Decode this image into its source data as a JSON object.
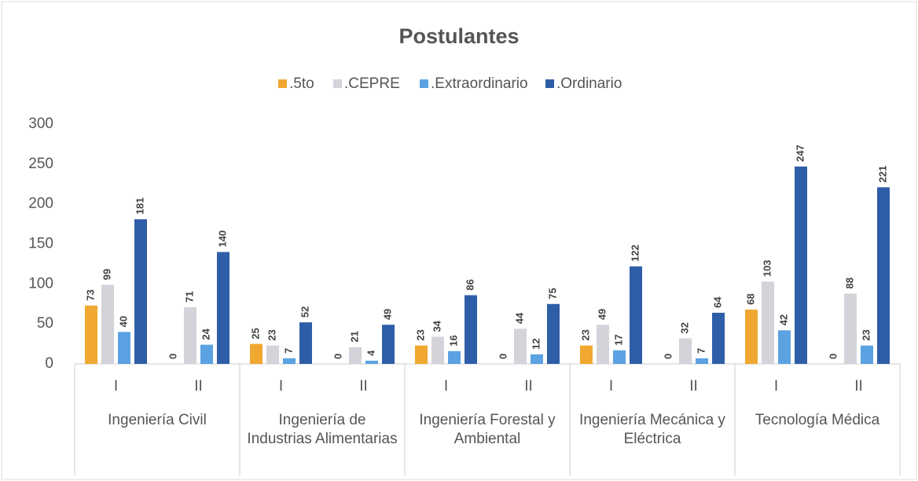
{
  "chart_data": {
    "type": "bar",
    "title": "Postulantes",
    "categories": [
      "I",
      "II",
      "I",
      "II",
      "I",
      "II",
      "I",
      "II",
      "I",
      "II"
    ],
    "groups": [
      "Ingeniería Civil",
      "Ingeniería de Industrias Alimentarias",
      "Ingeniería Forestal y Ambiental",
      "Ingeniería Mecánica y Eléctrica",
      "Tecnología Médica"
    ],
    "series": [
      {
        "name": ".5to",
        "color": "#f0a830",
        "values": [
          73,
          0,
          25,
          0,
          23,
          0,
          23,
          0,
          68,
          0
        ]
      },
      {
        "name": ".CEPRE",
        "color": "#d3d3da",
        "values": [
          99,
          71,
          23,
          21,
          34,
          44,
          49,
          32,
          103,
          88
        ]
      },
      {
        "name": ".Extraordinario",
        "color": "#5ba2e3",
        "values": [
          40,
          24,
          7,
          4,
          16,
          12,
          17,
          7,
          42,
          23
        ]
      },
      {
        "name": ".Ordinario",
        "color": "#2f5ea8",
        "values": [
          181,
          140,
          52,
          49,
          86,
          75,
          122,
          64,
          247,
          221
        ]
      }
    ],
    "ylim": [
      0,
      300
    ],
    "yticks": [
      0,
      50,
      100,
      150,
      200,
      250,
      300
    ],
    "grid": false,
    "legend": "top"
  }
}
